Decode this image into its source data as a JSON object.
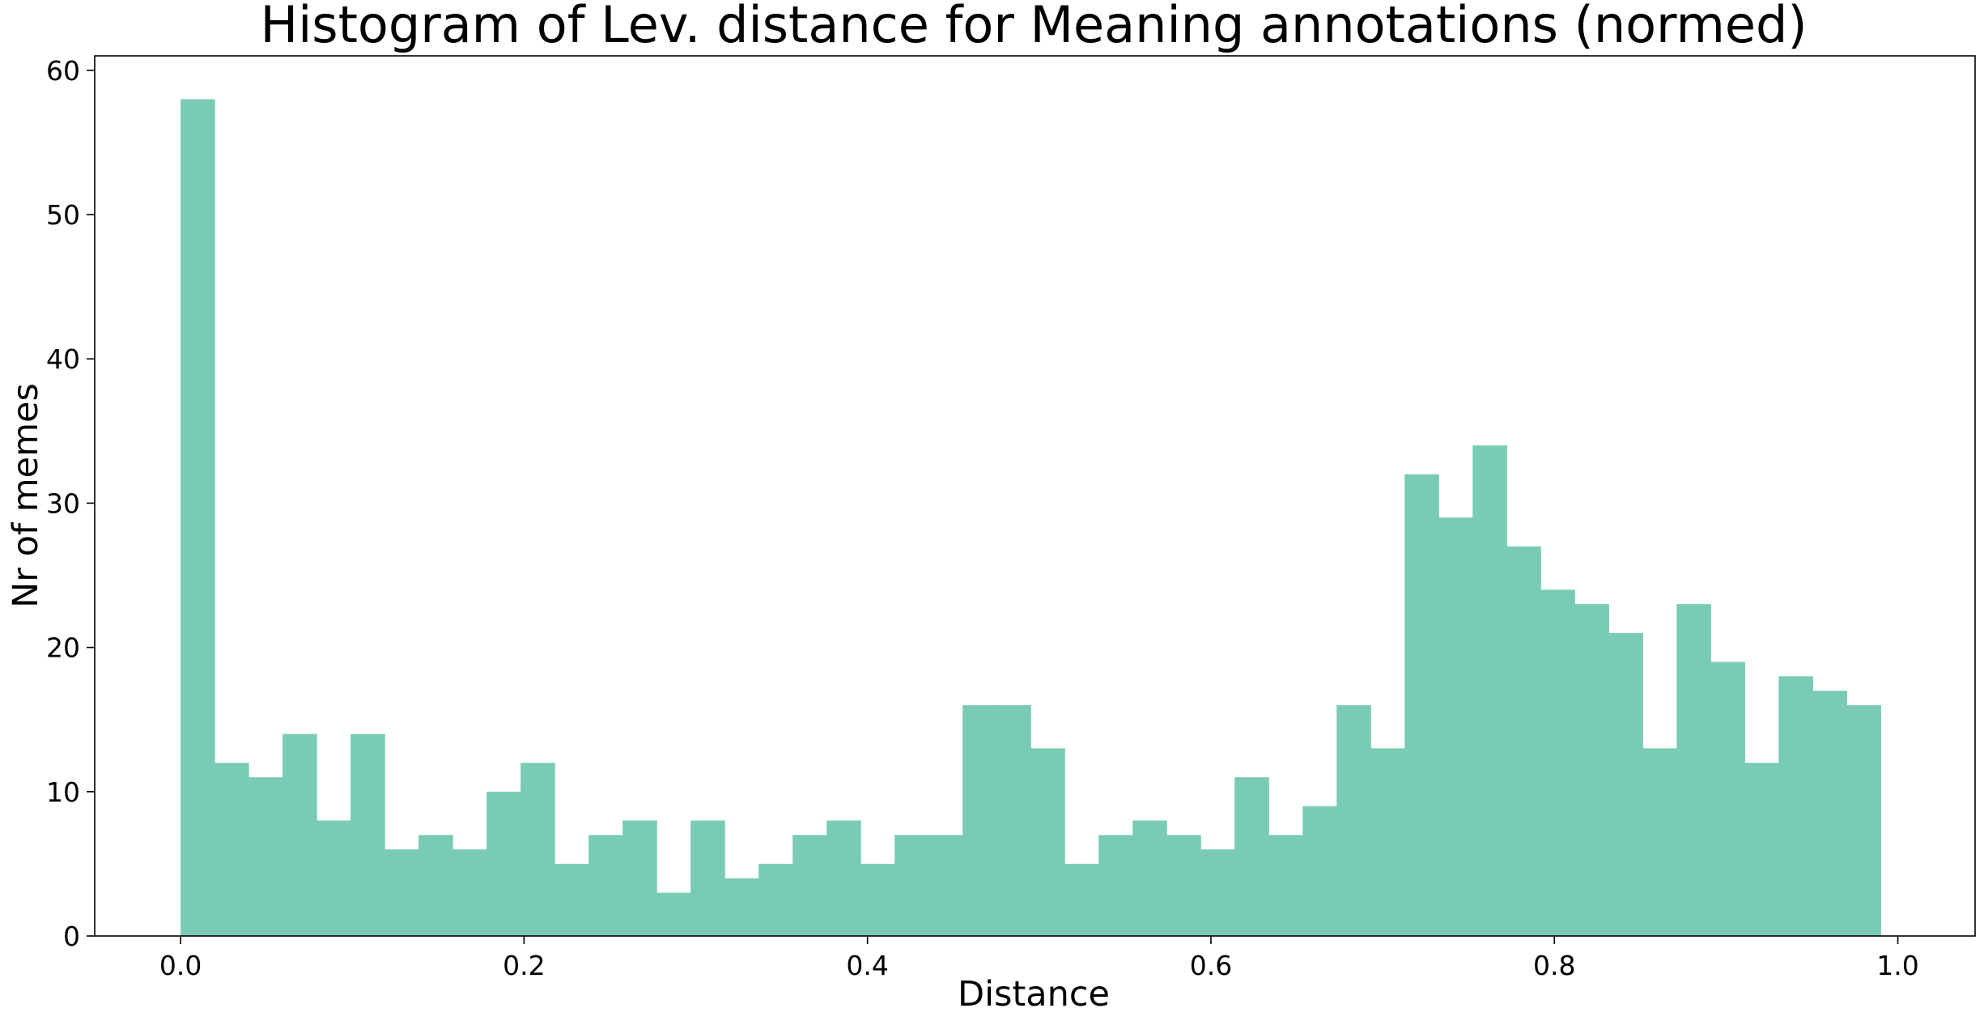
{
  "chart_data": {
    "type": "bar",
    "title": "Histogram of Lev. distance for Meaning annotations (normed)",
    "xlabel": "Distance",
    "ylabel": "Nr of memes",
    "xlim": [
      -0.05,
      1.045
    ],
    "ylim": [
      0,
      61
    ],
    "bin_start": 0.0,
    "bin_width": 0.0198,
    "values": [
      58,
      12,
      11,
      14,
      8,
      14,
      6,
      7,
      6,
      10,
      12,
      5,
      7,
      8,
      3,
      8,
      4,
      5,
      7,
      8,
      5,
      7,
      7,
      16,
      16,
      13,
      5,
      7,
      8,
      7,
      6,
      11,
      7,
      9,
      16,
      13,
      32,
      29,
      34,
      27,
      24,
      23,
      21,
      13,
      23,
      19,
      12,
      18,
      17,
      16
    ],
    "xticks": [
      0.0,
      0.2,
      0.4,
      0.6,
      0.8,
      1.0
    ],
    "xtick_labels": [
      "0.0",
      "0.2",
      "0.4",
      "0.6",
      "0.8",
      "1.0"
    ],
    "yticks": [
      0,
      10,
      20,
      30,
      40,
      50,
      60
    ],
    "ytick_labels": [
      "0",
      "10",
      "20",
      "30",
      "40",
      "50",
      "60"
    ],
    "color": "#7acbb4",
    "grid": false,
    "legend": "none"
  }
}
